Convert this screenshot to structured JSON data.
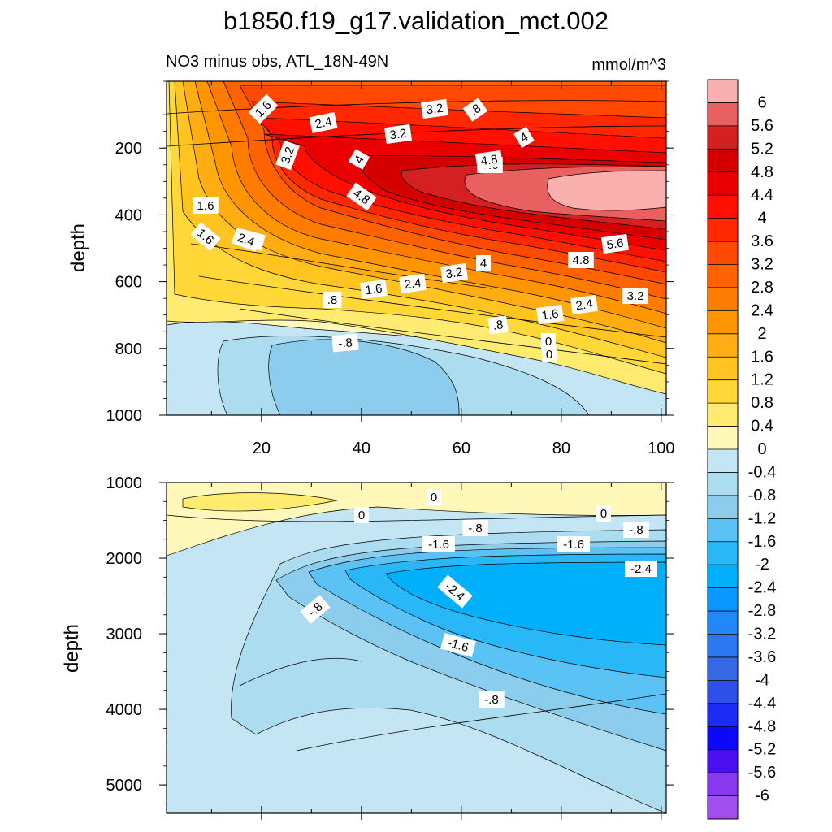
{
  "page_title": "b1850.f19_g17.validation_mct.002",
  "colorbar": {
    "levels": [
      {
        "label": "6",
        "color": "#fbb0b0"
      },
      {
        "label": "5.6",
        "color": "#e86060"
      },
      {
        "label": "5.2",
        "color": "#d42020"
      },
      {
        "label": "4.8",
        "color": "#d40000"
      },
      {
        "label": "4.4",
        "color": "#ea0000"
      },
      {
        "label": "4",
        "color": "#ff1000"
      },
      {
        "label": "3.6",
        "color": "#ff2800"
      },
      {
        "label": "3.2",
        "color": "#ff4800"
      },
      {
        "label": "2.8",
        "color": "#ff6200"
      },
      {
        "label": "2.4",
        "color": "#ff7c00"
      },
      {
        "label": "2",
        "color": "#ff9600"
      },
      {
        "label": "1.6",
        "color": "#ffad12"
      },
      {
        "label": "1.2",
        "color": "#ffc420"
      },
      {
        "label": "0.8",
        "color": "#ffd838"
      },
      {
        "label": "0.4",
        "color": "#ffeb70"
      },
      {
        "label": "0",
        "color": "#fff8b8"
      },
      {
        "label": "-0.4",
        "color": "#c4e6f4"
      },
      {
        "label": "-0.8",
        "color": "#acdcf0"
      },
      {
        "label": "-1.2",
        "color": "#8ccdee"
      },
      {
        "label": "-1.6",
        "color": "#5ac2f4"
      },
      {
        "label": "-2",
        "color": "#28b8f8"
      },
      {
        "label": "-2.4",
        "color": "#00b0fa"
      },
      {
        "label": "-2.8",
        "color": "#0898ff"
      },
      {
        "label": "-3.2",
        "color": "#2088f8"
      },
      {
        "label": "-3.6",
        "color": "#2c78f0"
      },
      {
        "label": "-4",
        "color": "#3468e4"
      },
      {
        "label": "-4.4",
        "color": "#2c50e8"
      },
      {
        "label": "-4.8",
        "color": "#1c2cf4"
      },
      {
        "label": "-5.2",
        "color": "#0c08f8"
      },
      {
        "label": "-5.6",
        "color": "#4a10f0"
      },
      {
        "label": "-6",
        "color": "#8838f0"
      },
      {
        "label": "",
        "color": "#a050f0"
      }
    ]
  },
  "chart_data": [
    {
      "type": "heatmap",
      "subtitle_left": "NO3 minus obs, ATL_18N-49N",
      "subtitle_right": "mmol/m^3",
      "ylabel": "depth",
      "xlim": [
        1,
        101
      ],
      "ylim": [
        1000,
        0
      ],
      "xticks": [
        "20",
        "40",
        "60",
        "80",
        "100"
      ],
      "yticks": [
        "200",
        "400",
        "600",
        "800",
        "1000"
      ],
      "contour_labels": [
        "1.6",
        "2.4",
        "1.6",
        "2.4",
        "3.2",
        "3.2",
        "4",
        "4",
        "4.8",
        "5.6",
        ".8",
        "3.2",
        "4.8",
        "1.6",
        "2.4",
        "5.6",
        "4.8",
        "4",
        "3.2",
        "2.4",
        "3.2",
        "2.4",
        "1.6",
        ".8",
        "1.6",
        "0",
        ".8",
        "-.8",
        "0"
      ],
      "regions": [
        {
          "level": "-0.4",
          "description": "water below about 750 m"
        },
        {
          "level": "-0.8",
          "description": "negative core near x 20-70, depth 780-1000"
        },
        {
          "level": "-1.2",
          "description": "center near x 45, depth 900"
        },
        {
          "level": "0.4",
          "description": "upper 700 m"
        },
        {
          "level": "5.2",
          "description": "maximum band x 40-100, depth 250-550"
        },
        {
          "level": "6",
          "description": "peak x 85-100, depth 280-420"
        }
      ]
    },
    {
      "type": "heatmap",
      "subtitle_left": "",
      "subtitle_right": "",
      "ylabel": "depth",
      "xlim": [
        1,
        101
      ],
      "ylim": [
        5375,
        1000
      ],
      "xticks": [],
      "yticks": [
        "1000",
        "2000",
        "3000",
        "4000",
        "5000"
      ],
      "contour_labels": [
        "0",
        "0",
        "0",
        "-.8",
        "-.8",
        "-1.6",
        "-1.6",
        "-2.4",
        "-.8",
        "-2.4",
        "-1.6",
        "-.8"
      ],
      "regions": [
        {
          "level": "0",
          "description": "thin positive band near 1000-1500 m"
        },
        {
          "level": "-0.4",
          "description": "most of the deep section"
        },
        {
          "level": "-0.8",
          "description": "wedge from x 10 to 100, depth 1500-4300"
        },
        {
          "level": "-1.2",
          "description": "x 25-100, depth 1600-3800"
        },
        {
          "level": "-2.4",
          "description": "core x 55-100, depth 2100-3000"
        }
      ]
    }
  ]
}
